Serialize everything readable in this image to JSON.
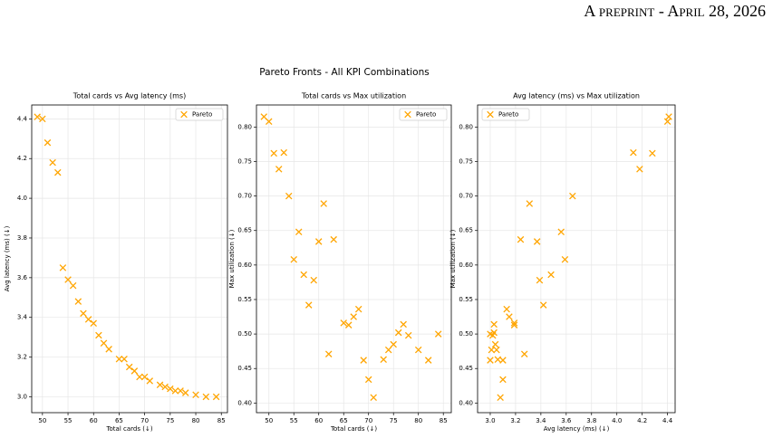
{
  "header": "A preprint - April 28, 2026",
  "figure_title": "Pareto Fronts - All KPI Combinations",
  "chart_data": [
    {
      "type": "scatter",
      "title": "Total cards vs Avg latency (ms)",
      "x_label": "Total cards (↓)",
      "y_label": "Avg latency (ms) (↓)",
      "xlim": [
        47.9,
        86.2
      ],
      "ylim": [
        2.92,
        4.47
      ],
      "xticks": [
        50,
        55,
        60,
        65,
        70,
        75,
        80,
        85
      ],
      "yticks": [
        {
          "value": 3,
          "label": "3.0"
        },
        3.2,
        3.4,
        3.6,
        3.8,
        {
          "value": 4,
          "label": "4.0"
        },
        4.2,
        4.4
      ],
      "grid": true,
      "legend_loc": "upper right",
      "marker": "x",
      "series": [
        {
          "name": "Pareto",
          "color": "#ffa500",
          "x": [
            49,
            50,
            51,
            52,
            53,
            54,
            55,
            56,
            57,
            58,
            59,
            60,
            61,
            62,
            63,
            65,
            66,
            67,
            68,
            69,
            70,
            71,
            73,
            74,
            75,
            76,
            77,
            78,
            80,
            82,
            84
          ],
          "values": [
            4.41,
            4.4,
            4.28,
            4.18,
            4.13,
            3.65,
            3.59,
            3.56,
            3.48,
            3.42,
            3.39,
            3.37,
            3.31,
            3.27,
            3.24,
            3.19,
            3.19,
            3.15,
            3.13,
            3.1,
            3.1,
            3.08,
            3.06,
            3.05,
            3.04,
            3.03,
            3.03,
            3.02,
            3.01,
            3.0,
            3.0
          ]
        }
      ]
    },
    {
      "type": "scatter",
      "title": "Total cards vs Max utilization",
      "x_label": "Total cards (↓)",
      "y_label": "Max utilization (↓)",
      "xlim": [
        47.5,
        86.6
      ],
      "ylim": [
        0.386,
        0.832
      ],
      "xticks": [
        50,
        55,
        60,
        65,
        70,
        75,
        80,
        85
      ],
      "yticks": [
        {
          "value": 0.4,
          "label": "0.40"
        },
        0.45,
        {
          "value": 0.5,
          "label": "0.50"
        },
        0.55,
        {
          "value": 0.6,
          "label": "0.60"
        },
        0.65,
        {
          "value": 0.7,
          "label": "0.70"
        },
        0.75,
        {
          "value": 0.8,
          "label": "0.80"
        }
      ],
      "grid": true,
      "legend_loc": "upper right",
      "marker": "x",
      "series": [
        {
          "name": "Pareto",
          "color": "#ffa500",
          "x": [
            49,
            50,
            51,
            52,
            53,
            54,
            55,
            56,
            57,
            58,
            59,
            60,
            61,
            62,
            63,
            65,
            66,
            67,
            68,
            69,
            70,
            71,
            73,
            74,
            75,
            76,
            77,
            78,
            80,
            82,
            84
          ],
          "values": [
            0.815,
            0.808,
            0.762,
            0.739,
            0.763,
            0.7,
            0.608,
            0.648,
            0.586,
            0.542,
            0.578,
            0.634,
            0.689,
            0.471,
            0.637,
            0.516,
            0.513,
            0.525,
            0.536,
            0.462,
            0.434,
            0.408,
            0.463,
            0.477,
            0.485,
            0.502,
            0.514,
            0.498,
            0.477,
            0.462,
            0.5
          ]
        }
      ]
    },
    {
      "type": "scatter",
      "title": "Avg latency (ms) vs Max utilization",
      "x_label": "Avg latency (ms) (↓)",
      "y_label": "Max utilization (↓)",
      "xlim": [
        2.9,
        4.46
      ],
      "ylim": [
        0.386,
        0.832
      ],
      "xticks": [
        {
          "value": 3,
          "label": "3.0"
        },
        3.2,
        3.4,
        3.6,
        3.8,
        {
          "value": 4,
          "label": "4.0"
        },
        4.2,
        4.4
      ],
      "yticks": [
        {
          "value": 0.4,
          "label": "0.40"
        },
        0.45,
        {
          "value": 0.5,
          "label": "0.50"
        },
        0.55,
        {
          "value": 0.6,
          "label": "0.60"
        },
        0.65,
        {
          "value": 0.7,
          "label": "0.70"
        },
        0.75,
        {
          "value": 0.8,
          "label": "0.80"
        }
      ],
      "grid": true,
      "legend_loc": "upper left",
      "marker": "x",
      "series": [
        {
          "name": "Pareto",
          "color": "#ffa500",
          "x": [
            4.41,
            4.4,
            4.28,
            4.18,
            4.13,
            3.65,
            3.59,
            3.56,
            3.48,
            3.42,
            3.39,
            3.37,
            3.31,
            3.27,
            3.24,
            3.19,
            3.19,
            3.15,
            3.13,
            3.1,
            3.1,
            3.08,
            3.06,
            3.05,
            3.04,
            3.03,
            3.03,
            3.02,
            3.01,
            3.0,
            3.0
          ],
          "values": [
            0.815,
            0.808,
            0.762,
            0.739,
            0.763,
            0.7,
            0.608,
            0.648,
            0.586,
            0.542,
            0.578,
            0.634,
            0.689,
            0.471,
            0.637,
            0.516,
            0.513,
            0.525,
            0.536,
            0.462,
            0.434,
            0.408,
            0.463,
            0.477,
            0.485,
            0.502,
            0.514,
            0.498,
            0.477,
            0.462,
            0.5
          ]
        }
      ]
    }
  ]
}
